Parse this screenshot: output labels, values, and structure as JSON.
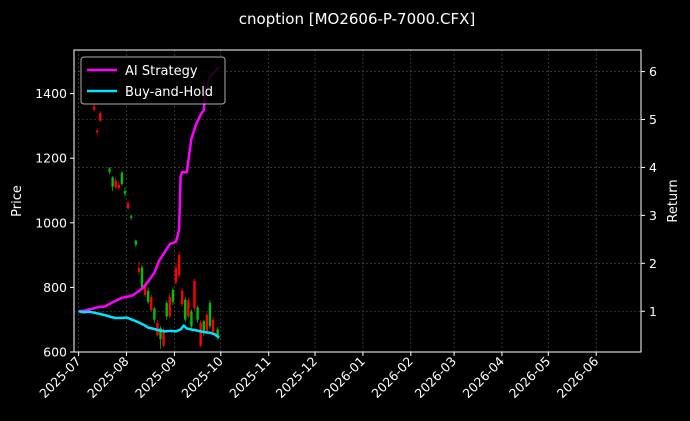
{
  "chart_data": {
    "type": "line",
    "title": "cnoption [MO2606-P-7000.CFX]",
    "ylabel": "Price",
    "y2label": "Return",
    "xlabel": "",
    "x_range": [
      "2025-06-28",
      "2026-06-30"
    ],
    "ylim": [
      600,
      1535
    ],
    "y2lim": [
      0.15,
      6.45
    ],
    "yticks": [
      600,
      800,
      1000,
      1200,
      1400
    ],
    "y2ticks": [
      1,
      2,
      3,
      4,
      5,
      6
    ],
    "xticks": [
      "2025-07",
      "2025-08",
      "2025-09",
      "2025-10",
      "2025-11",
      "2025-12",
      "2026-01",
      "2026-02",
      "2026-03",
      "2026-04",
      "2026-05",
      "2026-06"
    ],
    "grid": true,
    "legend": "upper-left",
    "colors": {
      "up": "#00c000",
      "down": "#ff0000",
      "ai": "#ff00ff",
      "bh": "#00e5ff"
    },
    "series": [
      {
        "name": "AI Strategy",
        "axis": "return",
        "color": "#ff00ff",
        "points": [
          [
            "2025-07-01",
            1.0
          ],
          [
            "2025-07-04",
            1.01
          ],
          [
            "2025-07-08",
            1.04
          ],
          [
            "2025-07-11",
            1.06
          ],
          [
            "2025-07-14",
            1.09
          ],
          [
            "2025-07-18",
            1.1
          ],
          [
            "2025-07-22",
            1.17
          ],
          [
            "2025-07-25",
            1.22
          ],
          [
            "2025-07-29",
            1.28
          ],
          [
            "2025-08-01",
            1.3
          ],
          [
            "2025-08-05",
            1.33
          ],
          [
            "2025-08-08",
            1.4
          ],
          [
            "2025-08-12",
            1.5
          ],
          [
            "2025-08-15",
            1.62
          ],
          [
            "2025-08-19",
            1.8
          ],
          [
            "2025-08-22",
            2.05
          ],
          [
            "2025-08-26",
            2.25
          ],
          [
            "2025-08-29",
            2.4
          ],
          [
            "2025-09-02",
            2.45
          ],
          [
            "2025-09-04",
            2.7
          ],
          [
            "2025-09-05",
            3.8
          ],
          [
            "2025-09-06",
            3.9
          ],
          [
            "2025-09-09",
            3.9
          ],
          [
            "2025-09-12",
            4.6
          ],
          [
            "2025-09-15",
            4.9
          ],
          [
            "2025-09-18",
            5.1
          ],
          [
            "2025-09-20",
            5.2
          ],
          [
            "2025-09-21",
            5.6
          ],
          [
            "2025-09-24",
            5.9
          ],
          [
            "2025-09-27",
            6.0
          ],
          [
            "2025-09-30",
            6.1
          ]
        ]
      },
      {
        "name": "Buy-and-Hold",
        "axis": "return",
        "color": "#00e5ff",
        "points": [
          [
            "2025-07-01",
            1.0
          ],
          [
            "2025-07-04",
            0.98
          ],
          [
            "2025-07-08",
            0.99
          ],
          [
            "2025-07-11",
            0.97
          ],
          [
            "2025-07-14",
            0.95
          ],
          [
            "2025-07-18",
            0.92
          ],
          [
            "2025-07-22",
            0.88
          ],
          [
            "2025-07-25",
            0.86
          ],
          [
            "2025-07-29",
            0.86
          ],
          [
            "2025-08-01",
            0.87
          ],
          [
            "2025-08-05",
            0.82
          ],
          [
            "2025-08-08",
            0.78
          ],
          [
            "2025-08-12",
            0.72
          ],
          [
            "2025-08-15",
            0.66
          ],
          [
            "2025-08-19",
            0.63
          ],
          [
            "2025-08-22",
            0.6
          ],
          [
            "2025-08-26",
            0.58
          ],
          [
            "2025-08-29",
            0.59
          ],
          [
            "2025-09-02",
            0.58
          ],
          [
            "2025-09-05",
            0.62
          ],
          [
            "2025-09-07",
            0.7
          ],
          [
            "2025-09-09",
            0.64
          ],
          [
            "2025-09-12",
            0.62
          ],
          [
            "2025-09-15",
            0.6
          ],
          [
            "2025-09-18",
            0.58
          ],
          [
            "2025-09-21",
            0.56
          ],
          [
            "2025-09-24",
            0.55
          ],
          [
            "2025-09-27",
            0.52
          ],
          [
            "2025-09-30",
            0.45
          ]
        ]
      }
    ],
    "candles": [
      {
        "date": "2025-07-11",
        "open": 1360,
        "high": 1366,
        "low": 1345,
        "close": 1350
      },
      {
        "date": "2025-07-13",
        "open": 1285,
        "high": 1292,
        "low": 1272,
        "close": 1280
      },
      {
        "date": "2025-07-15",
        "open": 1340,
        "high": 1346,
        "low": 1312,
        "close": 1316
      },
      {
        "date": "2025-07-21",
        "open": 1158,
        "high": 1172,
        "low": 1150,
        "close": 1168
      },
      {
        "date": "2025-07-23",
        "open": 1112,
        "high": 1145,
        "low": 1098,
        "close": 1140
      },
      {
        "date": "2025-07-25",
        "open": 1130,
        "high": 1140,
        "low": 1105,
        "close": 1110
      },
      {
        "date": "2025-07-27",
        "open": 1118,
        "high": 1128,
        "low": 1100,
        "close": 1108
      },
      {
        "date": "2025-07-29",
        "open": 1120,
        "high": 1160,
        "low": 1115,
        "close": 1155
      },
      {
        "date": "2025-07-31",
        "open": 1090,
        "high": 1110,
        "low": 1082,
        "close": 1098
      },
      {
        "date": "2025-08-02",
        "open": 1060,
        "high": 1068,
        "low": 1040,
        "close": 1045
      },
      {
        "date": "2025-08-04",
        "open": 1015,
        "high": 1025,
        "low": 1008,
        "close": 1020
      },
      {
        "date": "2025-08-07",
        "open": 932,
        "high": 948,
        "low": 925,
        "close": 945
      },
      {
        "date": "2025-08-09",
        "open": 860,
        "high": 880,
        "low": 840,
        "close": 848
      },
      {
        "date": "2025-08-11",
        "open": 800,
        "high": 870,
        "low": 792,
        "close": 862
      },
      {
        "date": "2025-08-13",
        "open": 810,
        "high": 818,
        "low": 770,
        "close": 776
      },
      {
        "date": "2025-08-15",
        "open": 755,
        "high": 800,
        "low": 748,
        "close": 790
      },
      {
        "date": "2025-08-17",
        "open": 770,
        "high": 778,
        "low": 725,
        "close": 730
      },
      {
        "date": "2025-08-19",
        "open": 700,
        "high": 740,
        "low": 690,
        "close": 735
      },
      {
        "date": "2025-08-21",
        "open": 690,
        "high": 698,
        "low": 648,
        "close": 652
      },
      {
        "date": "2025-08-23",
        "open": 640,
        "high": 680,
        "low": 610,
        "close": 675
      },
      {
        "date": "2025-08-25",
        "open": 670,
        "high": 676,
        "low": 615,
        "close": 620
      },
      {
        "date": "2025-08-27",
        "open": 710,
        "high": 760,
        "low": 700,
        "close": 752
      },
      {
        "date": "2025-08-29",
        "open": 770,
        "high": 782,
        "low": 705,
        "close": 710
      },
      {
        "date": "2025-08-31",
        "open": 755,
        "high": 800,
        "low": 745,
        "close": 792
      },
      {
        "date": "2025-09-02",
        "open": 860,
        "high": 872,
        "low": 810,
        "close": 815
      },
      {
        "date": "2025-09-04",
        "open": 900,
        "high": 910,
        "low": 830,
        "close": 838
      },
      {
        "date": "2025-09-06",
        "open": 790,
        "high": 798,
        "low": 740,
        "close": 748
      },
      {
        "date": "2025-09-08",
        "open": 700,
        "high": 770,
        "low": 692,
        "close": 762
      },
      {
        "date": "2025-09-10",
        "open": 760,
        "high": 768,
        "low": 705,
        "close": 710
      },
      {
        "date": "2025-09-12",
        "open": 680,
        "high": 732,
        "low": 672,
        "close": 725
      },
      {
        "date": "2025-09-14",
        "open": 820,
        "high": 826,
        "low": 728,
        "close": 735
      },
      {
        "date": "2025-09-16",
        "open": 700,
        "high": 745,
        "low": 690,
        "close": 738
      },
      {
        "date": "2025-09-18",
        "open": 690,
        "high": 698,
        "low": 615,
        "close": 620
      },
      {
        "date": "2025-09-20",
        "open": 660,
        "high": 700,
        "low": 650,
        "close": 695
      },
      {
        "date": "2025-09-22",
        "open": 715,
        "high": 722,
        "low": 658,
        "close": 662
      },
      {
        "date": "2025-09-24",
        "open": 680,
        "high": 760,
        "low": 672,
        "close": 752
      },
      {
        "date": "2025-09-26",
        "open": 700,
        "high": 710,
        "low": 655,
        "close": 660
      },
      {
        "date": "2025-09-29",
        "open": 650,
        "high": 676,
        "low": 638,
        "close": 670
      }
    ]
  }
}
